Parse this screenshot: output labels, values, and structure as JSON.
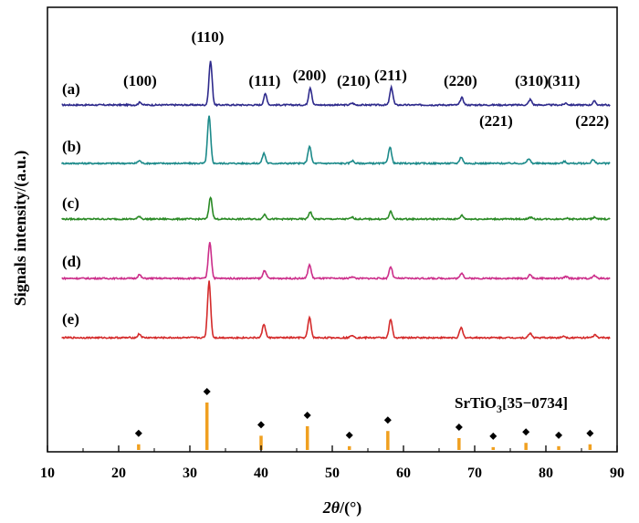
{
  "chart_data": {
    "type": "line",
    "xlabel_symbol": "2θ",
    "xlabel_unit": "/(°)",
    "ylabel": "Signals intensity/(a.u.)",
    "xlim": [
      10,
      90
    ],
    "xticks": [
      "10",
      "20",
      "30",
      "40",
      "50",
      "60",
      "70",
      "80",
      "90"
    ],
    "yticks_shown": false,
    "series": [
      {
        "name": "(a)",
        "color": "#2e2a8c",
        "peaks": [
          [
            23.0,
            0.3
          ],
          [
            32.9,
            4.8
          ],
          [
            40.6,
            1.2
          ],
          [
            46.9,
            1.9
          ],
          [
            52.8,
            0.2
          ],
          [
            58.3,
            1.9
          ],
          [
            68.2,
            0.8
          ],
          [
            77.8,
            0.6
          ],
          [
            82.8,
            0.2
          ],
          [
            86.8,
            0.4
          ]
        ]
      },
      {
        "name": "(b)",
        "color": "#1c8a8a",
        "peaks": [
          [
            22.9,
            0.3
          ],
          [
            32.7,
            5.2
          ],
          [
            40.4,
            1.1
          ],
          [
            46.8,
            1.9
          ],
          [
            52.8,
            0.3
          ],
          [
            58.1,
            1.8
          ],
          [
            68.1,
            0.7
          ],
          [
            77.6,
            0.5
          ],
          [
            82.6,
            0.2
          ],
          [
            86.6,
            0.4
          ]
        ]
      },
      {
        "name": "(c)",
        "color": "#2a8a25",
        "peaks": [
          [
            22.9,
            0.3
          ],
          [
            32.9,
            2.4
          ],
          [
            40.5,
            0.5
          ],
          [
            46.9,
            0.8
          ],
          [
            52.8,
            0.2
          ],
          [
            58.2,
            0.8
          ],
          [
            68.2,
            0.4
          ],
          [
            77.8,
            0.2
          ],
          [
            82.8,
            0.1
          ],
          [
            86.8,
            0.2
          ]
        ]
      },
      {
        "name": "(d)",
        "color": "#cc2e8a",
        "peaks": [
          [
            22.9,
            0.4
          ],
          [
            32.8,
            4.0
          ],
          [
            40.5,
            0.9
          ],
          [
            46.8,
            1.5
          ],
          [
            52.8,
            0.2
          ],
          [
            58.2,
            1.3
          ],
          [
            68.2,
            0.6
          ],
          [
            77.8,
            0.4
          ],
          [
            82.8,
            0.2
          ],
          [
            86.8,
            0.3
          ]
        ]
      },
      {
        "name": "(e)",
        "color": "#d42a2a",
        "peaks": [
          [
            22.9,
            0.4
          ],
          [
            32.7,
            6.2
          ],
          [
            40.4,
            1.5
          ],
          [
            46.8,
            2.2
          ],
          [
            52.8,
            0.3
          ],
          [
            58.2,
            2.0
          ],
          [
            68.1,
            1.1
          ],
          [
            77.8,
            0.5
          ],
          [
            82.5,
            0.2
          ],
          [
            86.9,
            0.3
          ]
        ]
      }
    ],
    "peak_labels": [
      {
        "text": "(100)",
        "x": 23.0
      },
      {
        "text": "(110)",
        "x": 32.5
      },
      {
        "text": "(111)",
        "x": 40.5
      },
      {
        "text": "(200)",
        "x": 46.8
      },
      {
        "text": "(210)",
        "x": 53.0
      },
      {
        "text": "(211)",
        "x": 58.2
      },
      {
        "text": "(220)",
        "x": 68.0
      },
      {
        "text": "(221)",
        "x": 73.0
      },
      {
        "text": "(310)",
        "x": 78.0
      },
      {
        "text": "(311)",
        "x": 82.5
      },
      {
        "text": "(222)",
        "x": 86.5
      }
    ],
    "reference": {
      "label_main": "SrTiO",
      "label_sub": "3",
      "label_tail": "[35−0734]",
      "color": "#f0a020",
      "marker_color": "#000000",
      "lines": [
        {
          "x": 22.8,
          "intensity": 12
        },
        {
          "x": 32.4,
          "intensity": 100
        },
        {
          "x": 40.0,
          "intensity": 30
        },
        {
          "x": 46.5,
          "intensity": 50
        },
        {
          "x": 52.4,
          "intensity": 8
        },
        {
          "x": 57.8,
          "intensity": 40
        },
        {
          "x": 67.8,
          "intensity": 25
        },
        {
          "x": 72.6,
          "intensity": 6
        },
        {
          "x": 77.2,
          "intensity": 15
        },
        {
          "x": 81.8,
          "intensity": 8
        },
        {
          "x": 86.2,
          "intensity": 12
        }
      ]
    }
  }
}
